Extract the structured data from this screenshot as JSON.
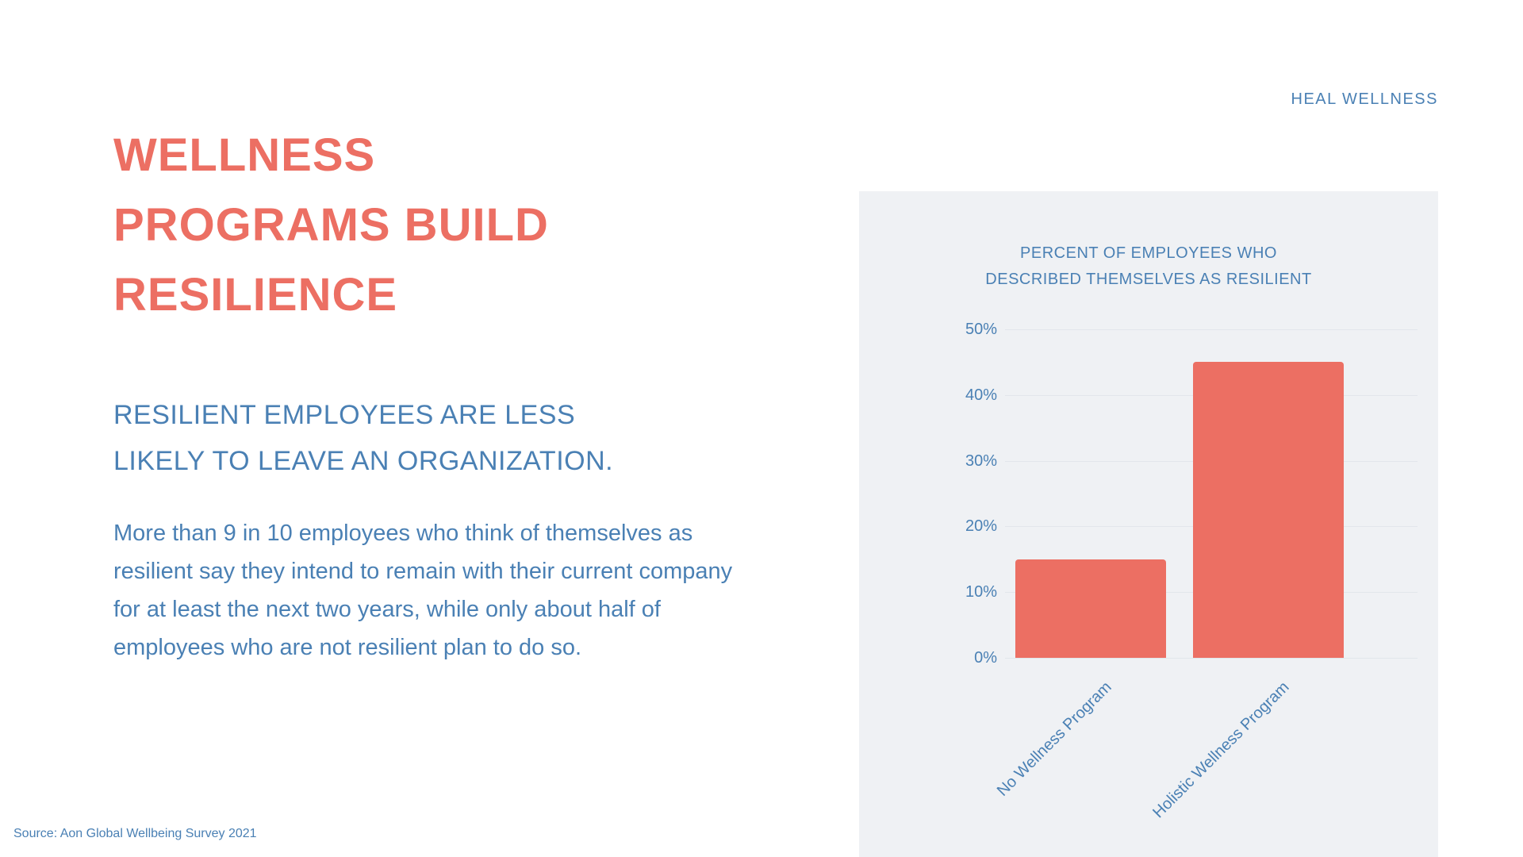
{
  "colors": {
    "accent": "#ec6f63",
    "text_blue": "#4a80b4",
    "panel_bg": "#eff1f4",
    "gridline": "#e2e6eb",
    "background": "#ffffff"
  },
  "brand": {
    "label": "HEAL WELLNESS"
  },
  "headline": {
    "lines": [
      "WELLNESS",
      "PROGRAMS BUILD",
      "RESILIENCE"
    ]
  },
  "subheadline": {
    "text": "RESILIENT EMPLOYEES ARE LESS LIKELY TO LEAVE AN ORGANIZATION."
  },
  "body": {
    "text": "More than 9 in 10 employees who think of themselves as resilient say they intend to remain with their current company for at least the next two years, while only about half of employees who are not resilient plan to do so."
  },
  "source": {
    "text": "Source: Aon Global Wellbeing Survey 2021"
  },
  "chart": {
    "title_lines": [
      "PERCENT OF EMPLOYEES WHO",
      "DESCRIBED THEMSELVES AS RESILIENT"
    ]
  },
  "chart_data": {
    "type": "bar",
    "title": "PERCENT OF EMPLOYEES WHO DESCRIBED THEMSELVES AS RESILIENT",
    "categories": [
      "No Wellness Program",
      "Holistic Wellness Program"
    ],
    "values": [
      15,
      45
    ],
    "value_unit": "%",
    "xlabel": "",
    "ylabel": "",
    "ylim": [
      0,
      50
    ],
    "yticks": [
      0,
      10,
      20,
      30,
      40,
      50
    ],
    "ytick_labels": [
      "0%",
      "10%",
      "20%",
      "30%",
      "40%",
      "50%"
    ],
    "grid": "horizontal",
    "legend": "none",
    "bar_color": "#ec6f63"
  }
}
